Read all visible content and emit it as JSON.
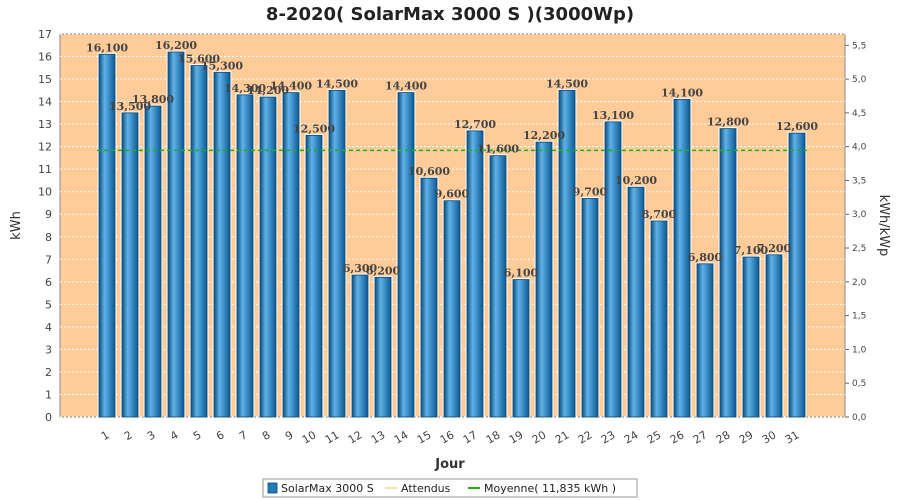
{
  "chart_data": {
    "type": "bar",
    "title": "8-2020( SolarMax 3000 S )(3000Wp)",
    "xlabel": "Jour",
    "ylabel": "kWh",
    "y2label": "kWh/kWp",
    "ylim": [
      0,
      17
    ],
    "y2lim": [
      0,
      5.667
    ],
    "yticks": [
      "0",
      "1",
      "2",
      "3",
      "4",
      "5",
      "6",
      "7",
      "8",
      "9",
      "10",
      "11",
      "12",
      "13",
      "14",
      "15",
      "16",
      "17"
    ],
    "y2ticks": [
      "0,0",
      "0,5",
      "1,0",
      "1,5",
      "2,0",
      "2,5",
      "3,0",
      "3,5",
      "4,0",
      "4,5",
      "5,0",
      "5,5"
    ],
    "categories": [
      "1",
      "2",
      "3",
      "4",
      "5",
      "6",
      "7",
      "8",
      "9",
      "10",
      "11",
      "12",
      "13",
      "14",
      "15",
      "16",
      "17",
      "18",
      "19",
      "20",
      "21",
      "22",
      "23",
      "24",
      "25",
      "26",
      "27",
      "28",
      "29",
      "30",
      "31"
    ],
    "values": [
      16.1,
      13.5,
      13.8,
      16.2,
      15.6,
      15.3,
      14.3,
      14.2,
      14.4,
      12.5,
      14.5,
      6.3,
      6.2,
      14.4,
      10.6,
      9.6,
      12.7,
      11.6,
      6.1,
      12.2,
      14.5,
      9.7,
      13.1,
      10.2,
      8.7,
      14.1,
      6.8,
      12.8,
      7.1,
      7.2,
      12.6
    ],
    "value_labels": [
      "16,100",
      "13,500",
      "13,800",
      "16,200",
      "15,600",
      "15,300",
      "14,300",
      "14,200",
      "14,400",
      "12,500",
      "14,500",
      "6,300",
      "6,200",
      "14,400",
      "10,600",
      "9,600",
      "12,700",
      "11,600",
      "6,100",
      "12,200",
      "14,500",
      "9,700",
      "13,100",
      "10,200",
      "8,700",
      "14,100",
      "6,800",
      "12,800",
      "7,100",
      "7,200",
      "12,600"
    ],
    "average": 11.835,
    "grid": true,
    "legend_position": "bottom",
    "legend": [
      {
        "name": "SolarMax 3000 S",
        "kind": "bar",
        "color": "#1f7ab8"
      },
      {
        "name": "Attendus",
        "kind": "line",
        "color": "#f2e6a0"
      },
      {
        "name": "Moyenne( 11,835 kWh )",
        "kind": "line",
        "color": "#19b219"
      }
    ],
    "colors": {
      "plot_bg": "#ffcc99",
      "bar": "#1f7ab8",
      "bar_light": "#5fb2e8",
      "bar_dark": "#0d4f80",
      "average_line": "#19b219"
    }
  }
}
